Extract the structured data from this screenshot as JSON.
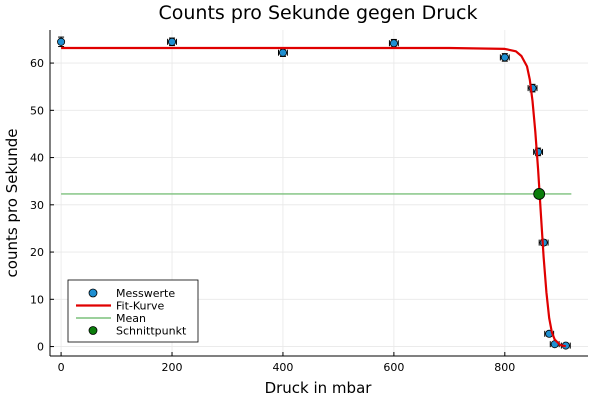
{
  "chart_data": {
    "type": "scatter",
    "title": "Counts pro Sekunde gegen Druck",
    "xlabel": "Druck in mbar",
    "ylabel": "counts pro Sekunde",
    "xlim": [
      -20,
      950
    ],
    "ylim": [
      -2,
      67
    ],
    "xticks": [
      0,
      200,
      400,
      600,
      800
    ],
    "yticks": [
      0,
      10,
      20,
      30,
      40,
      50,
      60
    ],
    "grid": true,
    "legend_position": "bottom-left",
    "series": [
      {
        "name": "Messwerte",
        "kind": "errorbar-points",
        "color": "#1f8fd1",
        "points": [
          {
            "x": 0,
            "y": 64.5,
            "xerr": 3,
            "yerr": 1.0
          },
          {
            "x": 200,
            "y": 64.5,
            "xerr": 8,
            "yerr": 0.8
          },
          {
            "x": 400,
            "y": 62.2,
            "xerr": 8,
            "yerr": 0.8
          },
          {
            "x": 600,
            "y": 64.2,
            "xerr": 8,
            "yerr": 0.8
          },
          {
            "x": 800,
            "y": 61.2,
            "xerr": 8,
            "yerr": 0.8
          },
          {
            "x": 850,
            "y": 54.7,
            "xerr": 8,
            "yerr": 0.8
          },
          {
            "x": 860,
            "y": 41.2,
            "xerr": 8,
            "yerr": 0.8
          },
          {
            "x": 870,
            "y": 22.0,
            "xerr": 8,
            "yerr": 0.6
          },
          {
            "x": 880,
            "y": 2.7,
            "xerr": 8,
            "yerr": 0.5
          },
          {
            "x": 890,
            "y": 0.5,
            "xerr": 8,
            "yerr": 0.4
          },
          {
            "x": 910,
            "y": 0.2,
            "xerr": 8,
            "yerr": 0.4
          }
        ]
      },
      {
        "name": "Fit-Kurve",
        "kind": "line",
        "color": "#e00000",
        "x": [
          0,
          100,
          200,
          300,
          400,
          500,
          600,
          700,
          800,
          820,
          830,
          840,
          845,
          850,
          855,
          860,
          865,
          870,
          875,
          880,
          885,
          890,
          900,
          910
        ],
        "y": [
          63.2,
          63.2,
          63.2,
          63.2,
          63.2,
          63.2,
          63.2,
          63.2,
          63.0,
          62.5,
          61.5,
          59.3,
          56.5,
          52.0,
          45.5,
          37.5,
          28.0,
          19.0,
          11.5,
          6.0,
          3.0,
          1.5,
          0.3,
          0.05
        ]
      },
      {
        "name": "Mean",
        "kind": "hline",
        "color": "#7cc07c",
        "x": [
          0,
          920
        ],
        "y": 32.3
      },
      {
        "name": "Schnittpunkt",
        "kind": "point",
        "color": "#0b7d0b",
        "x": 862,
        "y": 32.3
      }
    ]
  }
}
